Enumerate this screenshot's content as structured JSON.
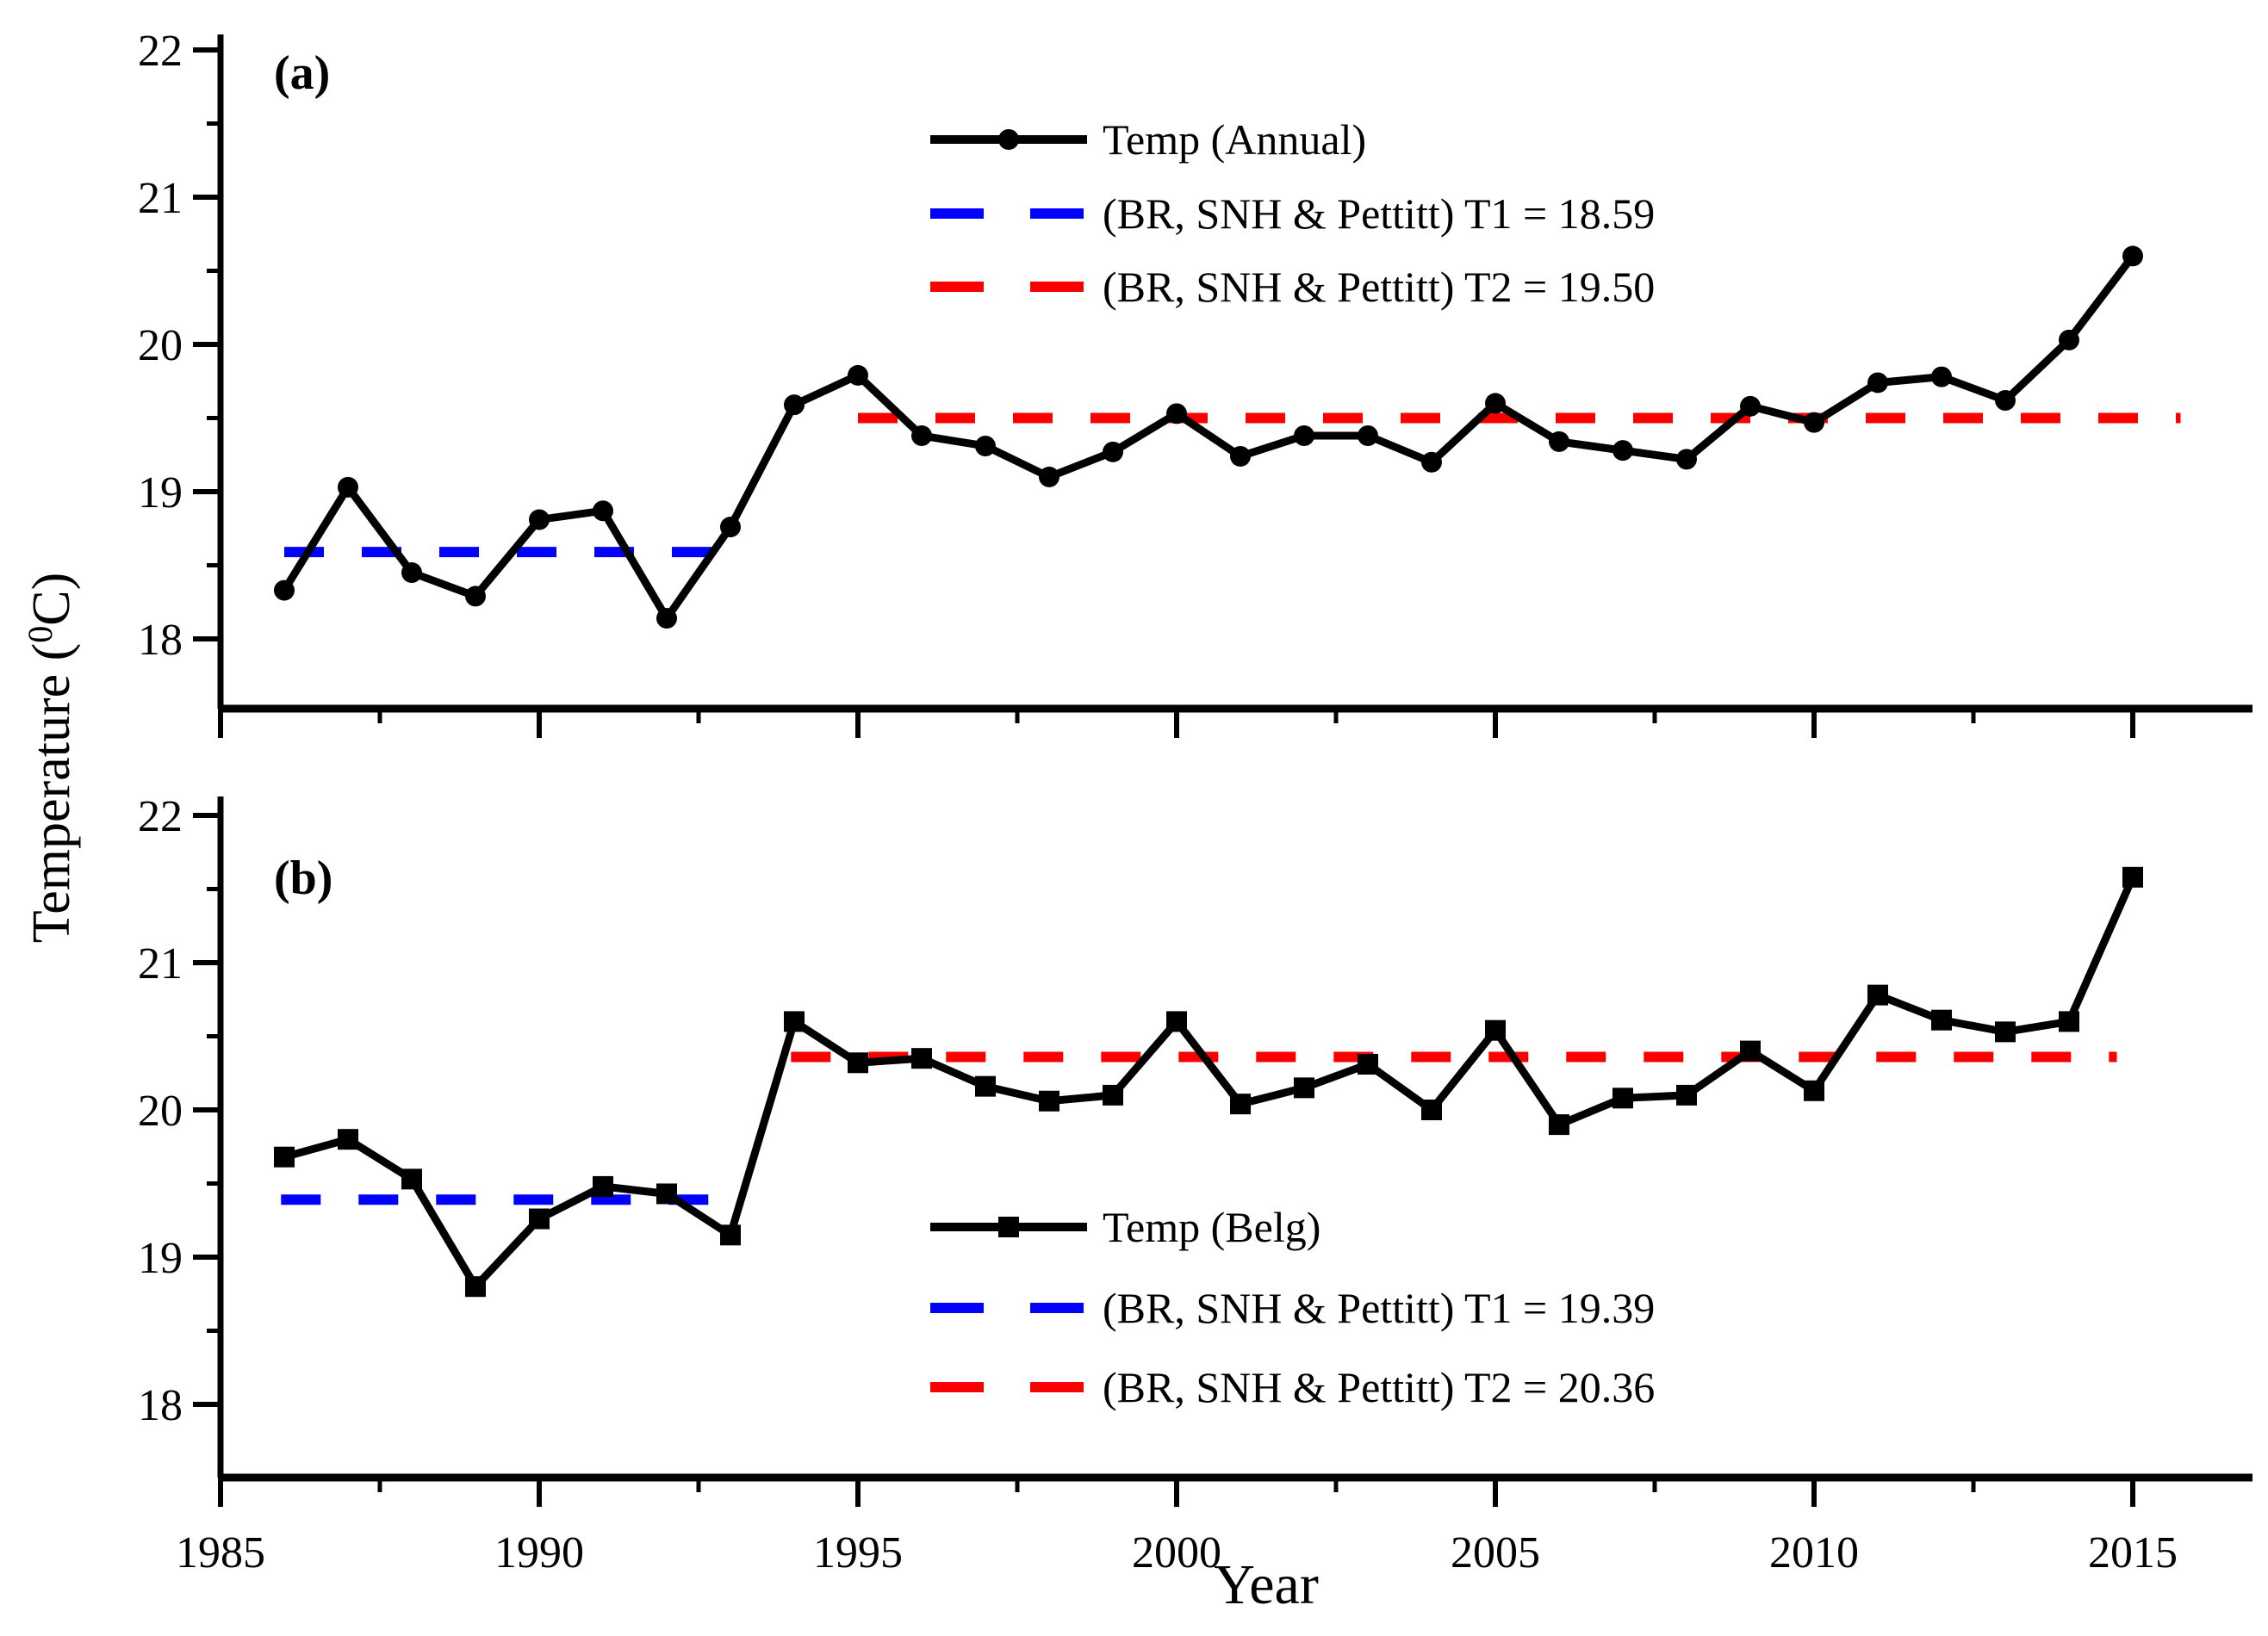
{
  "figure": {
    "x_axis_title": "Year",
    "y_axis_title_prefix": "Temperature (",
    "y_axis_title_sup": "0",
    "y_axis_title_suffix": "C)",
    "colors": {
      "series": "#000000",
      "t1_line": "#0000fe",
      "t2_line": "#fb0000"
    }
  },
  "chart_data": [
    {
      "type": "line",
      "panel_label": "(a)",
      "marker": "circle",
      "xlabel": "Year",
      "ylabel": "Temperature (0C)",
      "xlim": [
        1985,
        2017
      ],
      "ylim": [
        17.5,
        22.1
      ],
      "xticks": [
        1985,
        1990,
        1995,
        2000,
        2005,
        2010,
        2015
      ],
      "xticks_minor": [
        1987.5,
        1992.5,
        1997.5,
        2002.5,
        2007.5,
        2012.5
      ],
      "yticks": [
        18,
        19,
        20,
        21,
        22
      ],
      "yticks_minor": [
        18.5,
        19.5,
        20.5,
        21.5
      ],
      "grid": false,
      "legend_position": "upper-center-right",
      "x": [
        1986,
        1987,
        1988,
        1989,
        1990,
        1991,
        1992,
        1993,
        1994,
        1995,
        1996,
        1997,
        1998,
        1999,
        2000,
        2001,
        2002,
        2003,
        2004,
        2005,
        2006,
        2007,
        2008,
        2009,
        2010,
        2011,
        2012,
        2013,
        2014,
        2015
      ],
      "series": [
        {
          "name": "Temp (Annual)",
          "values": [
            18.33,
            19.03,
            18.45,
            18.29,
            18.81,
            18.87,
            18.14,
            18.76,
            19.59,
            19.79,
            19.38,
            19.31,
            19.1,
            19.27,
            19.53,
            19.24,
            19.38,
            19.38,
            19.2,
            19.6,
            19.34,
            19.28,
            19.22,
            19.58,
            19.47,
            19.74,
            19.78,
            19.62,
            20.03,
            20.6
          ]
        }
      ],
      "mean_lines": [
        {
          "name": "(BR, SNH & Pettitt) T1 = 18.59",
          "value": 18.59,
          "span": [
            1986.0,
            1993.0
          ],
          "color": "#0000fe"
        },
        {
          "name": "(BR, SNH & Pettitt) T2 = 19.50",
          "value": 19.5,
          "span": [
            1995.0,
            2015.75
          ],
          "color": "#fb0000"
        }
      ]
    },
    {
      "type": "line",
      "panel_label": "(b)",
      "marker": "square",
      "xlabel": "Year",
      "ylabel": "Temperature (0C)",
      "xlim": [
        1985,
        2017
      ],
      "ylim": [
        17.5,
        22.1
      ],
      "xticks": [
        1985,
        1990,
        1995,
        2000,
        2005,
        2010,
        2015
      ],
      "xticks_minor": [
        1987.5,
        1992.5,
        1997.5,
        2002.5,
        2007.5,
        2012.5
      ],
      "yticks": [
        18,
        19,
        20,
        21,
        22
      ],
      "yticks_minor": [
        18.5,
        19.5,
        20.5,
        21.5
      ],
      "grid": false,
      "legend_position": "lower-center-right",
      "x": [
        1986,
        1987,
        1988,
        1989,
        1990,
        1991,
        1992,
        1993,
        1994,
        1995,
        1996,
        1997,
        1998,
        1999,
        2000,
        2001,
        2002,
        2003,
        2004,
        2005,
        2006,
        2007,
        2008,
        2009,
        2010,
        2011,
        2012,
        2013,
        2014,
        2015
      ],
      "series": [
        {
          "name": "Temp (Belg)",
          "values": [
            19.68,
            19.8,
            19.53,
            18.8,
            19.26,
            19.48,
            19.43,
            19.15,
            20.6,
            20.32,
            20.35,
            20.16,
            20.06,
            20.1,
            20.6,
            20.04,
            20.15,
            20.31,
            20.0,
            20.54,
            19.9,
            20.08,
            20.1,
            20.4,
            20.13,
            20.78,
            20.61,
            20.53,
            20.6,
            21.58
          ]
        }
      ],
      "mean_lines": [
        {
          "name": "(BR, SNH & Pettitt) T1 = 19.39",
          "value": 19.39,
          "span": [
            1985.95,
            1992.85
          ],
          "color": "#0000fe"
        },
        {
          "name": "(BR, SNH & Pettitt) T2 =  20.36",
          "value": 20.36,
          "span": [
            1993.95,
            2014.75
          ],
          "color": "#fb0000"
        }
      ]
    }
  ]
}
